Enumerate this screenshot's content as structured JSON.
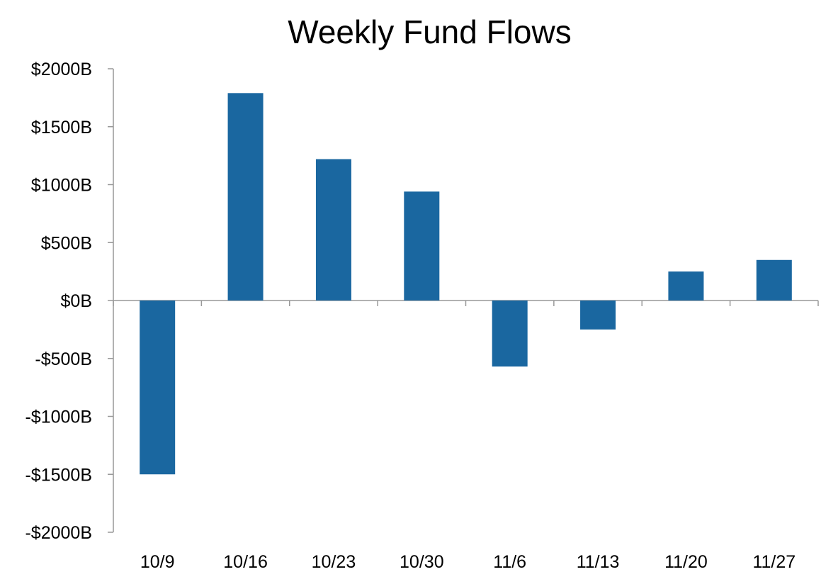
{
  "chart_data": {
    "type": "bar",
    "title": "Weekly Fund Flows",
    "xlabel": "",
    "ylabel": "",
    "categories": [
      "10/9",
      "10/16",
      "10/23",
      "10/30",
      "11/6",
      "11/13",
      "11/20",
      "11/27"
    ],
    "values": [
      -1500,
      1790,
      1220,
      940,
      -570,
      -250,
      250,
      350
    ],
    "ylim": [
      -2000,
      2000
    ],
    "yticks": [
      2000,
      1500,
      1000,
      500,
      0,
      -500,
      -1000,
      -1500,
      -2000
    ],
    "ytick_labels": [
      "$2000B",
      "$1500B",
      "$1000B",
      "$500B",
      "$0B",
      "-$500B",
      "-$1000B",
      "-$1500B",
      "-$2000B"
    ],
    "grid": false,
    "legend": "none",
    "bar_color": "#1a67a0",
    "axis_color": "#999999"
  }
}
